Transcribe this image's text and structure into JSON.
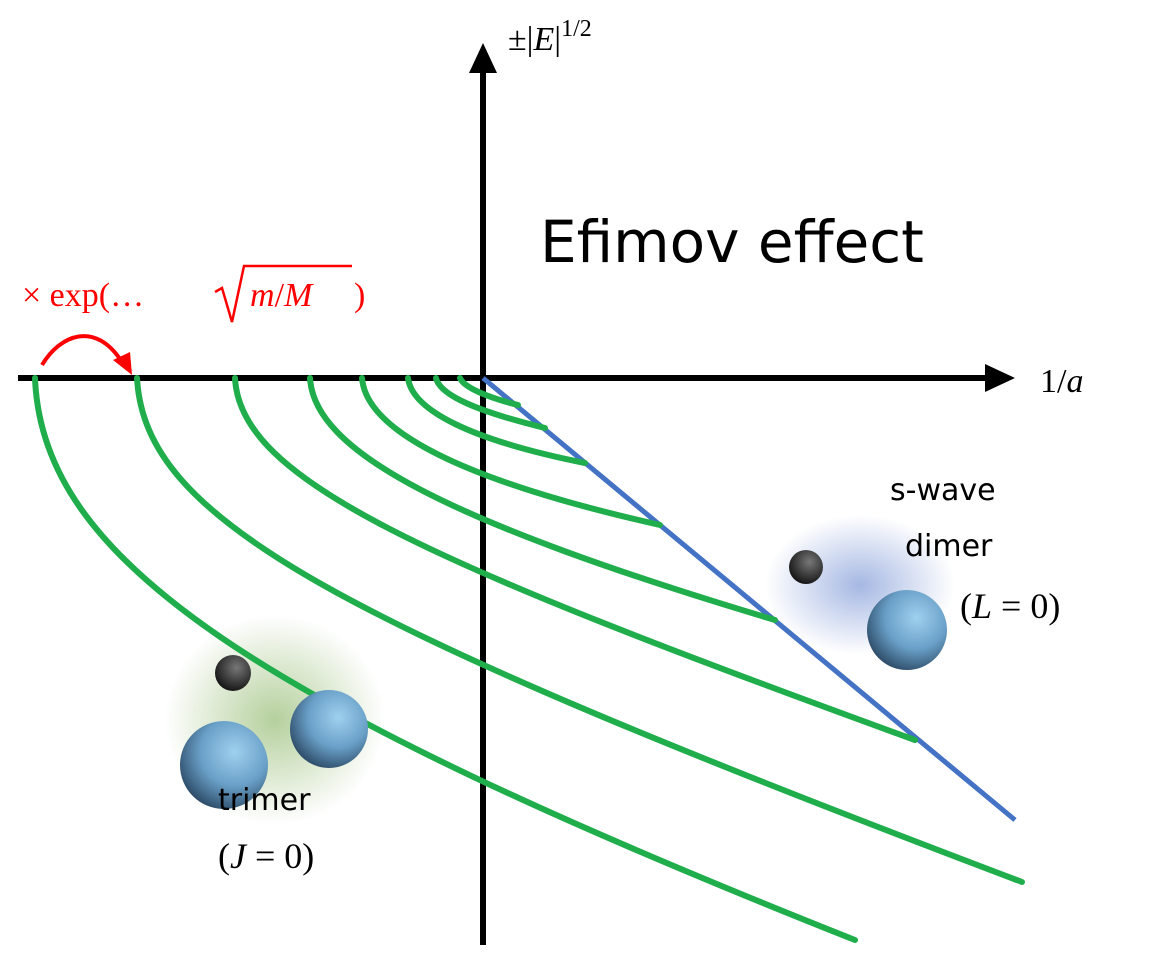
{
  "title": "Efimov effect",
  "x_axis_label": {
    "num": "1/",
    "var": "a"
  },
  "y_axis_label": {
    "pm": "±|",
    "var": "E",
    "bar": "|",
    "sup": "1/2"
  },
  "annotation": {
    "prefix": "× exp(… ",
    "radicand_m": "m",
    "slash": "/",
    "radicand_M": "M",
    "suffix": ")"
  },
  "dimer": {
    "line1": "s-wave",
    "line2": "dimer",
    "quantum": {
      "open": "(",
      "var": "L",
      "rest": " = 0)"
    }
  },
  "trimer": {
    "line1": "trimer",
    "quantum": {
      "open": "(",
      "var": "J",
      "rest": " = 0)"
    }
  }
}
